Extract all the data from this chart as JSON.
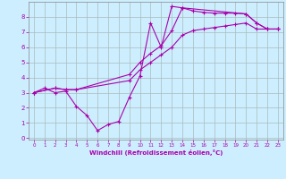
{
  "xlabel": "Windchill (Refroidissement éolien,°C)",
  "bg_color": "#cceeff",
  "grid_color": "#aabbbb",
  "line_color": "#aa00aa",
  "xlim": [
    -0.5,
    23.5
  ],
  "ylim": [
    -0.1,
    9.0
  ],
  "xticks": [
    0,
    1,
    2,
    3,
    4,
    5,
    6,
    7,
    8,
    9,
    10,
    11,
    12,
    13,
    14,
    15,
    16,
    17,
    18,
    19,
    20,
    21,
    22,
    23
  ],
  "yticks": [
    0,
    1,
    2,
    3,
    4,
    5,
    6,
    7,
    8
  ],
  "line1_x": [
    0,
    1,
    2,
    3,
    4,
    5,
    6,
    7,
    8,
    9,
    10,
    11,
    12,
    13,
    14,
    15,
    16,
    17,
    18,
    19,
    20,
    21,
    22,
    23
  ],
  "line1_y": [
    3.0,
    3.3,
    3.0,
    3.1,
    2.1,
    1.5,
    0.5,
    0.9,
    1.1,
    2.7,
    4.1,
    7.6,
    6.0,
    8.7,
    8.6,
    8.4,
    8.3,
    8.25,
    8.25,
    8.25,
    8.2,
    7.6,
    7.2,
    7.2
  ],
  "line2_x": [
    0,
    2,
    3,
    4,
    9,
    10,
    11,
    12,
    13,
    14,
    15,
    16,
    17,
    18,
    19,
    20,
    21,
    22,
    23
  ],
  "line2_y": [
    3.0,
    3.3,
    3.2,
    3.2,
    3.8,
    4.5,
    5.0,
    5.5,
    6.0,
    6.8,
    7.1,
    7.2,
    7.3,
    7.4,
    7.5,
    7.6,
    7.2,
    7.2,
    7.2
  ],
  "line3_x": [
    0,
    2,
    3,
    4,
    9,
    10,
    11,
    12,
    13,
    14,
    20,
    21,
    22,
    23
  ],
  "line3_y": [
    3.0,
    3.3,
    3.2,
    3.2,
    4.2,
    5.0,
    5.6,
    6.1,
    7.1,
    8.6,
    8.2,
    7.6,
    7.2,
    7.2
  ]
}
